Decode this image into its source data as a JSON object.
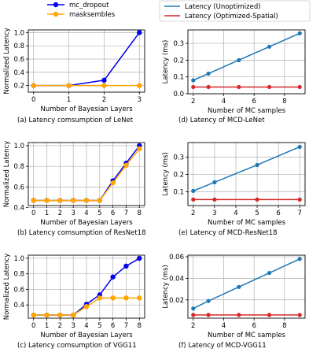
{
  "legends": {
    "left": [
      {
        "label": "mc_dropout",
        "color": "#0000ee"
      },
      {
        "label": "masksembles",
        "color": "#ffa500"
      }
    ],
    "right": [
      {
        "label": "Latency (Unoptimized)",
        "color": "#1f77b4"
      },
      {
        "label": "Latency (Optimized-Spatial)",
        "color": "#d62728"
      }
    ]
  },
  "chart_data": [
    {
      "id": "a",
      "type": "line",
      "caption": "(a)  Latency comsumption of LeNet",
      "xlabel": "Number of Bayesian Layers",
      "ylabel": "Normalized Latency",
      "x": [
        0,
        1,
        2,
        3
      ],
      "xticks": [
        0,
        1,
        2,
        3
      ],
      "xlim": [
        -0.15,
        3.15
      ],
      "yticks": [
        0.2,
        0.4,
        0.6,
        0.8,
        1.0
      ],
      "ytick_labels": [
        "0.2",
        "0.4",
        "0.6",
        "0.8",
        "1.0"
      ],
      "ylim": [
        0.1,
        1.04
      ],
      "grid": true,
      "series": [
        {
          "name": "mc_dropout",
          "color": "#0000ee",
          "values": [
            0.2,
            0.2,
            0.28,
            1.0
          ]
        },
        {
          "name": "masksembles",
          "color": "#ffa500",
          "values": [
            0.2,
            0.2,
            0.2,
            0.2
          ]
        }
      ]
    },
    {
      "id": "d",
      "type": "line",
      "caption": "(d) Latency of MCD-LeNet",
      "xlabel": "Number of MC samples",
      "ylabel": "Latency (ms)",
      "x": [
        2,
        3,
        5,
        7,
        9
      ],
      "xticks": [
        2,
        4,
        6,
        8
      ],
      "xlim": [
        1.65,
        9.35
      ],
      "yticks": [
        0.0,
        0.1,
        0.2,
        0.3
      ],
      "ytick_labels": [
        "0.0",
        "0.1",
        "0.2",
        "0.3"
      ],
      "ylim": [
        0.0,
        0.38
      ],
      "grid": true,
      "series": [
        {
          "name": "Latency (Unoptimized)",
          "color": "#1f77b4",
          "values": [
            0.08,
            0.12,
            0.2,
            0.28,
            0.36
          ]
        },
        {
          "name": "Latency (Optimized-Spatial)",
          "color": "#d62728",
          "values": [
            0.04,
            0.04,
            0.04,
            0.04,
            0.04
          ]
        }
      ]
    },
    {
      "id": "b",
      "type": "line",
      "caption": "(b)  Latency comsumption of ResNet18",
      "xlabel": "Number of Bayesian Layers",
      "ylabel": "Normalized Latency",
      "x": [
        0,
        1,
        2,
        3,
        4,
        5,
        6,
        7,
        8
      ],
      "xticks": [
        0,
        1,
        2,
        3,
        4,
        5,
        6,
        7,
        8
      ],
      "xlim": [
        -0.4,
        8.4
      ],
      "yticks": [
        0.4,
        0.6,
        0.8,
        1.0
      ],
      "ytick_labels": [
        "0.4",
        "0.6",
        "0.8",
        "1.0"
      ],
      "ylim": [
        0.42,
        1.03
      ],
      "grid": true,
      "series": [
        {
          "name": "mc_dropout",
          "color": "#0000ee",
          "values": [
            0.47,
            0.47,
            0.47,
            0.47,
            0.47,
            0.47,
            0.66,
            0.83,
            1.0
          ]
        },
        {
          "name": "masksembles",
          "color": "#ffa500",
          "values": [
            0.47,
            0.47,
            0.47,
            0.47,
            0.47,
            0.47,
            0.64,
            0.81,
            0.97
          ]
        }
      ]
    },
    {
      "id": "e",
      "type": "line",
      "caption": "(e) Latency of MCD-ResNet18",
      "xlabel": "Number of MC samples",
      "ylabel": "Latency (ms)",
      "x": [
        2,
        3,
        5,
        7
      ],
      "xticks": [
        2,
        3,
        4,
        5,
        6,
        7
      ],
      "xlim": [
        1.75,
        7.25
      ],
      "yticks": [
        0.1,
        0.2,
        0.3
      ],
      "ytick_labels": [
        "0.1",
        "0.2",
        "0.3"
      ],
      "ylim": [
        0.02,
        0.385
      ],
      "grid": true,
      "series": [
        {
          "name": "Latency (Unoptimized)",
          "color": "#1f77b4",
          "values": [
            0.105,
            0.155,
            0.255,
            0.36
          ]
        },
        {
          "name": "Latency (Optimized-Spatial)",
          "color": "#d62728",
          "values": [
            0.055,
            0.055,
            0.055,
            0.055
          ]
        }
      ]
    },
    {
      "id": "c",
      "type": "line",
      "caption": "(c)  Latency comsumption of VGG11",
      "xlabel": "Number of Bayesian Layers",
      "ylabel": "Normalized Latency",
      "x": [
        0,
        1,
        2,
        3,
        4,
        5,
        6,
        7,
        8
      ],
      "xticks": [
        0,
        1,
        2,
        3,
        4,
        5,
        6,
        7,
        8
      ],
      "xlim": [
        -0.4,
        8.4
      ],
      "yticks": [
        0.4,
        0.6,
        0.8,
        1.0
      ],
      "ytick_labels": [
        "0.4",
        "0.6",
        "0.8",
        "1.0"
      ],
      "ylim": [
        0.23,
        1.04
      ],
      "grid": true,
      "series": [
        {
          "name": "mc_dropout",
          "color": "#0000ee",
          "values": [
            0.27,
            0.27,
            0.27,
            0.27,
            0.41,
            0.53,
            0.76,
            0.9,
            1.0
          ]
        },
        {
          "name": "masksembles",
          "color": "#ffa500",
          "values": [
            0.27,
            0.27,
            0.27,
            0.27,
            0.38,
            0.49,
            0.49,
            0.49,
            0.49
          ]
        }
      ]
    },
    {
      "id": "f",
      "type": "line",
      "caption": "(f) Latency of MCD-VGG11",
      "xlabel": "Number of MC samples",
      "ylabel": "Latency (ms)",
      "x": [
        2,
        3,
        5,
        7,
        9
      ],
      "xticks": [
        2,
        4,
        6,
        8
      ],
      "xlim": [
        1.65,
        9.35
      ],
      "yticks": [
        0.02,
        0.04,
        0.06
      ],
      "ytick_labels": [
        "0.02",
        "0.04",
        "0.06"
      ],
      "ylim": [
        0.003,
        0.0615
      ],
      "grid": true,
      "series": [
        {
          "name": "Latency (Unoptimized)",
          "color": "#1f77b4",
          "values": [
            0.012,
            0.019,
            0.032,
            0.045,
            0.058
          ]
        },
        {
          "name": "Latency (Optimized-Spatial)",
          "color": "#d62728",
          "values": [
            0.006,
            0.006,
            0.006,
            0.006,
            0.006
          ]
        }
      ]
    }
  ]
}
